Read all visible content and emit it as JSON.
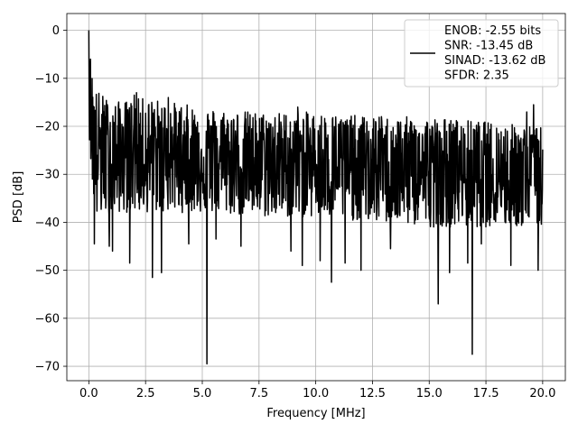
{
  "chart_data": {
    "type": "line",
    "title": "",
    "xlabel": "Frequency [MHz]",
    "ylabel": "PSD [dB]",
    "xlim": [
      -0.97,
      21.0
    ],
    "ylim": [
      -73.0,
      3.5
    ],
    "xticks": [
      0.0,
      2.5,
      5.0,
      7.5,
      10.0,
      12.5,
      15.0,
      17.5,
      20.0
    ],
    "xtick_labels": [
      "0.0",
      "2.5",
      "5.0",
      "7.5",
      "10.0",
      "12.5",
      "15.0",
      "17.5",
      "20.0"
    ],
    "yticks": [
      0,
      -10,
      -20,
      -30,
      -40,
      -50,
      -60,
      -70
    ],
    "ytick_labels": [
      "0",
      "−10",
      "−20",
      "−30",
      "−40",
      "−50",
      "−60",
      "−70"
    ],
    "grid": true,
    "legend_position": "top-right",
    "series": [
      {
        "name": "ENOB: -2.55 bits\nSNR: -13.45 dB\nSINAD: -13.62 dB\nSFDR: 2.35",
        "legend_lines": [
          "ENOB: -2.55 bits",
          "SNR: -13.45 dB",
          "SINAD: -13.62 dB",
          "SFDR: 2.35"
        ],
        "color": "#000000",
        "x_range": [
          0.0,
          20.0
        ],
        "envelope": [
          {
            "x": 0.0,
            "upper": 0.0,
            "lower": -20,
            "mean": -10
          },
          {
            "x": 0.1,
            "upper": -7,
            "lower": -30,
            "mean": -18
          },
          {
            "x": 0.3,
            "upper": -12,
            "lower": -40,
            "mean": -24
          },
          {
            "x": 1.0,
            "upper": -15,
            "lower": -38,
            "mean": -26
          },
          {
            "x": 2.5,
            "upper": -14,
            "lower": -38,
            "mean": -26
          },
          {
            "x": 5.0,
            "upper": -16,
            "lower": -38,
            "mean": -27
          },
          {
            "x": 7.5,
            "upper": -17,
            "lower": -39,
            "mean": -28
          },
          {
            "x": 10.0,
            "upper": -17,
            "lower": -39,
            "mean": -28
          },
          {
            "x": 12.5,
            "upper": -18,
            "lower": -40,
            "mean": -29
          },
          {
            "x": 15.0,
            "upper": -18,
            "lower": -41,
            "mean": -29
          },
          {
            "x": 17.5,
            "upper": -19,
            "lower": -41,
            "mean": -30
          },
          {
            "x": 20.0,
            "upper": -20,
            "lower": -41,
            "mean": -30
          }
        ],
        "deep_nulls": [
          {
            "x": 0.25,
            "y": -44.5
          },
          {
            "x": 0.9,
            "y": -45.0
          },
          {
            "x": 1.05,
            "y": -46.0
          },
          {
            "x": 1.8,
            "y": -48.5
          },
          {
            "x": 2.8,
            "y": -51.5
          },
          {
            "x": 3.2,
            "y": -50.5
          },
          {
            "x": 4.4,
            "y": -44.5
          },
          {
            "x": 5.2,
            "y": -69.5
          },
          {
            "x": 5.6,
            "y": -43.5
          },
          {
            "x": 6.7,
            "y": -45.0
          },
          {
            "x": 8.9,
            "y": -46.0
          },
          {
            "x": 9.4,
            "y": -49.0
          },
          {
            "x": 10.2,
            "y": -48.0
          },
          {
            "x": 10.7,
            "y": -52.5
          },
          {
            "x": 11.3,
            "y": -48.5
          },
          {
            "x": 12.0,
            "y": -50.0
          },
          {
            "x": 13.3,
            "y": -45.5
          },
          {
            "x": 15.4,
            "y": -57.0
          },
          {
            "x": 15.9,
            "y": -50.5
          },
          {
            "x": 16.7,
            "y": -48.5
          },
          {
            "x": 16.9,
            "y": -67.5
          },
          {
            "x": 17.3,
            "y": -44.5
          },
          {
            "x": 18.6,
            "y": -49.0
          },
          {
            "x": 19.3,
            "y": -53.5
          },
          {
            "x": 19.8,
            "y": -50.0
          }
        ],
        "peaks": [
          {
            "x": 0.0,
            "y": 0.0
          },
          {
            "x": 0.05,
            "y": -6.5
          },
          {
            "x": 2.0,
            "y": -13.5
          },
          {
            "x": 2.1,
            "y": -13.0
          },
          {
            "x": 3.5,
            "y": -14.0
          },
          {
            "x": 9.2,
            "y": -16.0
          },
          {
            "x": 12.9,
            "y": -18.0
          },
          {
            "x": 19.3,
            "y": -17.0
          },
          {
            "x": 19.6,
            "y": -15.5
          }
        ]
      }
    ]
  }
}
